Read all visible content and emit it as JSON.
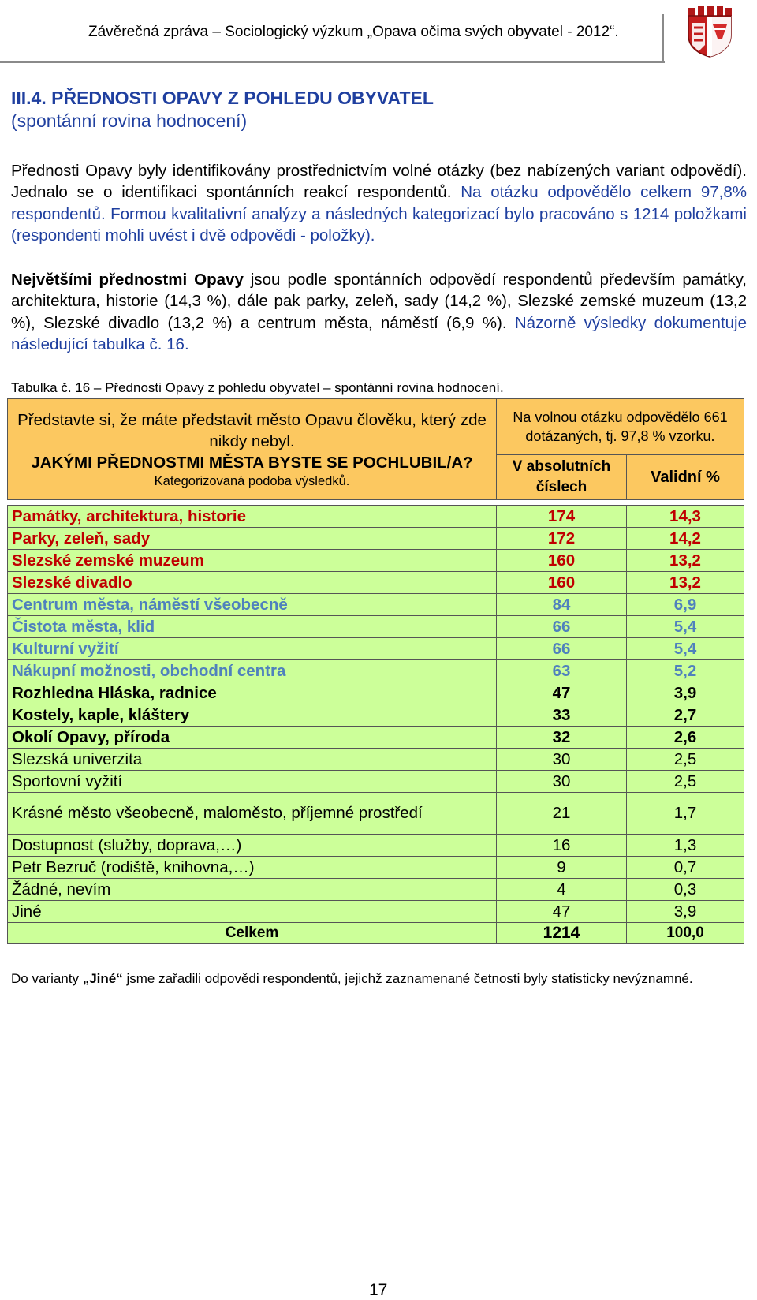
{
  "header": {
    "title": "Závěrečná zpráva – Sociologický výzkum „Opava očima svých obyvatel - 2012“.",
    "emblem": "opava-coat-of-arms-icon"
  },
  "section": {
    "number": "III.4.",
    "title": "PŘEDNOSTI OPAVY Z POHLEDU OBYVATEL",
    "subtitle": "(spontánní rovina hodnocení)"
  },
  "paragraph1": {
    "text_a": "Přednosti Opavy byly identifikovány prostřednictvím volné otázky (bez nabízených variant odpovědí). Jednalo se o identifikaci spontánních reakcí respondentů.",
    "text_b": " Na otázku odpovědělo celkem 97,8% respondentů.",
    "text_c": " Formou kvalitativní analýzy a následných kategorizací bylo pracováno s 1214 položkami (respondenti mohli uvést i dvě odpovědi - položky)."
  },
  "paragraph2": {
    "lead": "Největšími přednostmi Opavy",
    "text_a": " jsou podle spontánních odpovědí respondentů především památky, architektura, historie (14,3 %), dále pak parky, zeleň, sady (14,2 %), Slezské zemské muzeum (13,2 %), Slezské divadlo (13,2 %) a centrum města, náměstí (6,9 %).",
    "text_b": " Názorně výsledky dokumentuje následující tabulka č. 16."
  },
  "caption": "Tabulka č. 16 – Přednosti Opavy z pohledu obyvatel – spontánní rovina hodnocení.",
  "table": {
    "question_line1": "Představte si, že máte představit město Opavu člověku, který zde nikdy nebyl.",
    "question_line2": "JAKÝMI PŘEDNOSTMI MĚSTA BYSTE SE POCHLUBIL/A?",
    "question_line3": "Kategorizovaná podoba výsledků.",
    "answered_note": "Na volnou otázku odpovědělo 661 dotázaných, tj. 97,8 % vzorku.",
    "col_absolute": "V absolutních číslech",
    "col_valid": "Validní %",
    "rows": [
      {
        "label": "Památky, architektura, historie",
        "abs": "174",
        "pct": "14,3"
      },
      {
        "label": "Parky, zeleň, sady",
        "abs": "172",
        "pct": "14,2"
      },
      {
        "label": "Slezské zemské muzeum",
        "abs": "160",
        "pct": "13,2"
      },
      {
        "label": "Slezské divadlo",
        "abs": "160",
        "pct": "13,2"
      },
      {
        "label": "Centrum města, náměstí všeobecně",
        "abs": "84",
        "pct": "6,9"
      },
      {
        "label": "Čistota města, klid",
        "abs": "66",
        "pct": "5,4"
      },
      {
        "label": "Kulturní vyžití",
        "abs": "66",
        "pct": "5,4"
      },
      {
        "label": "Nákupní možnosti, obchodní centra",
        "abs": "63",
        "pct": "5,2"
      },
      {
        "label": "Rozhledna Hláska, radnice",
        "abs": "47",
        "pct": "3,9"
      },
      {
        "label": "Kostely, kaple, kláštery",
        "abs": "33",
        "pct": "2,7"
      },
      {
        "label": "Okolí Opavy, příroda",
        "abs": "32",
        "pct": "2,6"
      },
      {
        "label": "Slezská univerzita",
        "abs": "30",
        "pct": "2,5"
      },
      {
        "label": "Sportovní vyžití",
        "abs": "30",
        "pct": "2,5"
      },
      {
        "label": "Krásné město všeobecně, maloměsto, příjemné prostředí",
        "abs": "21",
        "pct": "1,7"
      },
      {
        "label": "Dostupnost (služby, doprava,…)",
        "abs": "16",
        "pct": "1,3"
      },
      {
        "label": "Petr Bezruč (rodiště, knihovna,…)",
        "abs": "9",
        "pct": "0,7"
      },
      {
        "label": "Žádné, nevím",
        "abs": "4",
        "pct": "0,3"
      },
      {
        "label": "Jiné",
        "abs": "47",
        "pct": "3,9"
      }
    ],
    "total_label": "Celkem",
    "total_abs": "1214",
    "total_pct": "100,0"
  },
  "note": {
    "pre": "Do varianty ",
    "bold": "„Jiné“",
    "post": " jsme zařadili odpovědi respondentů, jejichž zaznamenané četnosti byly statisticky nevýznamné."
  },
  "page_number": "17",
  "colors": {
    "heading_blue": "#1f3f9f",
    "header_fill": "#fcc860",
    "row_fill": "#ccff99",
    "red_text": "#c00000",
    "blue_text": "#4f81bd"
  }
}
